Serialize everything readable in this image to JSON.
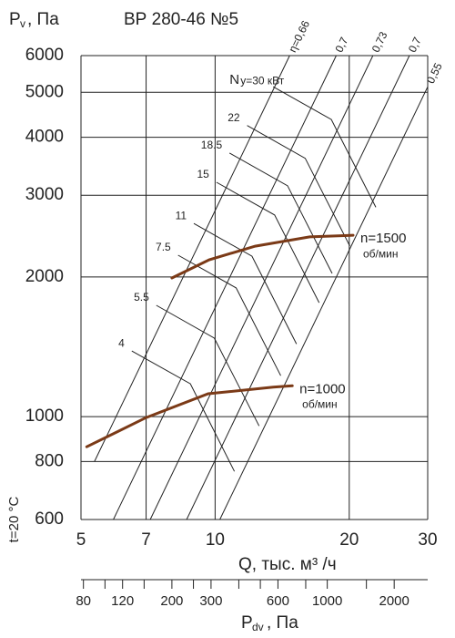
{
  "chart_data": {
    "type": "line",
    "title": "ВР 280-46 №5",
    "y_label": {
      "symbol": "P",
      "sub": "v",
      "unit": ", Па"
    },
    "x_label": "Q, тыс. м³ /ч",
    "side_label": "t=20 °C",
    "x2_label": {
      "symbol": "P",
      "sub": "dv",
      "unit": ", Па"
    },
    "log_x": true,
    "log_y": true,
    "grid": true,
    "xlim": [
      5,
      30
    ],
    "xticks": [
      5,
      7,
      10,
      20,
      30
    ],
    "ylim": [
      600,
      6000
    ],
    "yticks": [
      600,
      800,
      1000,
      2000,
      3000,
      4000,
      5000,
      6000
    ],
    "x2lim": [
      78,
      2830
    ],
    "x2ticks": [
      80,
      120,
      200,
      300,
      600,
      1000,
      2000
    ],
    "x2_minor_ticks": [
      100,
      150,
      250,
      400,
      500,
      800,
      1500
    ],
    "series": [
      {
        "name": "n=1500",
        "unit": "об/мин",
        "color": "#7b3a17",
        "x": [
          8.0,
          9.7,
          12.3,
          16.3,
          20.4
        ],
        "values": [
          1990,
          2178,
          2330,
          2440,
          2460
        ]
      },
      {
        "name": "n=1000",
        "unit": "об/мин",
        "color": "#7b3a17",
        "x": [
          5.15,
          7.0,
          9.65,
          13.5,
          14.9
        ],
        "values": [
          861,
          995,
          1120,
          1157,
          1165
        ]
      }
    ],
    "efficiency_lines": [
      {
        "label": "η=0,66",
        "points": [
          [
            5.36,
            800
          ],
          [
            14.7,
            6000
          ]
        ]
      },
      {
        "label": "0,7",
        "points": [
          [
            5.91,
            600
          ],
          [
            18.7,
            6000
          ]
        ]
      },
      {
        "label": "0,73",
        "points": [
          [
            7.15,
            600
          ],
          [
            22.6,
            6000
          ]
        ]
      },
      {
        "label": "0,7",
        "points": [
          [
            8.63,
            600
          ],
          [
            27.3,
            6000
          ]
        ]
      },
      {
        "label": "0,55",
        "points": [
          [
            10.25,
            600
          ],
          [
            30,
            5140
          ]
        ]
      }
    ],
    "power_lines": [
      {
        "label": "4",
        "points": [
          [
            6.5,
            1385
          ],
          [
            8.8,
            1177
          ],
          [
            11.05,
            762
          ]
        ]
      },
      {
        "label": "5.5",
        "points": [
          [
            7.38,
            1737
          ],
          [
            9.96,
            1476
          ],
          [
            12.55,
            955
          ]
        ]
      },
      {
        "label": "7.5",
        "points": [
          [
            8.26,
            2228
          ],
          [
            11.15,
            1894
          ],
          [
            14.04,
            1225
          ]
        ]
      },
      {
        "label": "11",
        "points": [
          [
            8.96,
            2608
          ],
          [
            12.1,
            2217
          ],
          [
            15.23,
            1434
          ]
        ]
      },
      {
        "label": "15",
        "points": [
          [
            10.07,
            3200
          ],
          [
            13.6,
            2720
          ],
          [
            17.12,
            1760
          ]
        ]
      },
      {
        "label": "18.5",
        "points": [
          [
            10.77,
            3700
          ],
          [
            14.54,
            3145
          ],
          [
            18.31,
            2035
          ]
        ]
      },
      {
        "label": "22",
        "points": [
          [
            11.8,
            4240
          ],
          [
            15.93,
            3604
          ],
          [
            20.06,
            2332
          ]
        ]
      },
      {
        "label": "у=30 кВт",
        "prefix": "N",
        "points": [
          [
            13.5,
            5140
          ],
          [
            18.23,
            4369
          ],
          [
            22.95,
            2827
          ]
        ]
      }
    ]
  }
}
